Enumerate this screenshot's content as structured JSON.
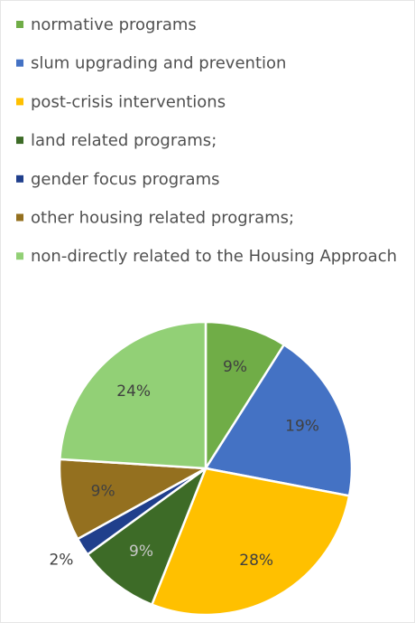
{
  "chart_data": {
    "type": "pie",
    "categories": [
      "normative programs",
      "slum upgrading and prevention",
      "post-crisis interventions",
      "land related programs;",
      "gender focus programs",
      "other housing related programs;",
      "non-directly related to the Housing Approach"
    ],
    "values": [
      9,
      19,
      28,
      9,
      2,
      9,
      24
    ],
    "value_labels": [
      "9%",
      "19%",
      "28%",
      "9%",
      "2%",
      "9%",
      "24%"
    ],
    "colors": [
      "#70ad47",
      "#4472c4",
      "#ffc000",
      "#3d6b27",
      "#203f8c",
      "#94701f",
      "#92d076"
    ],
    "legend": "top"
  }
}
